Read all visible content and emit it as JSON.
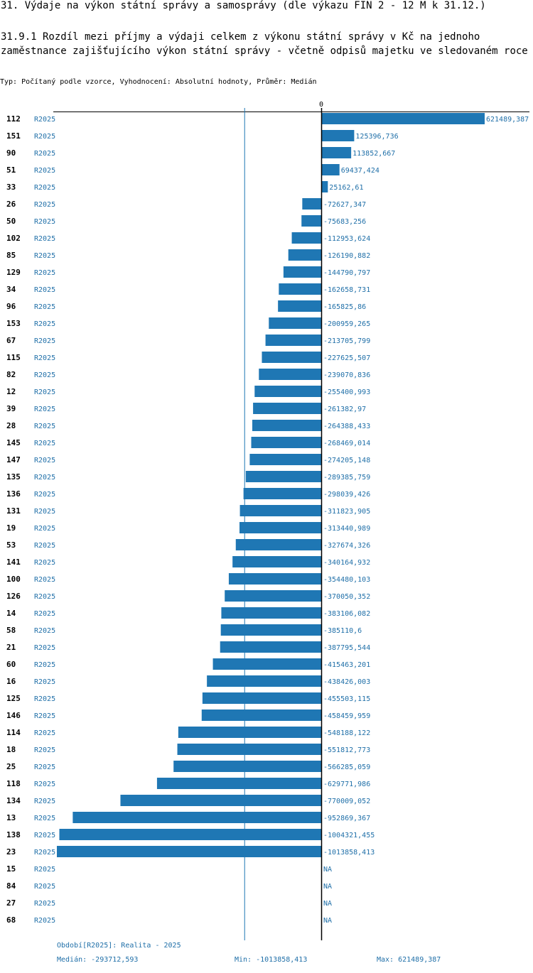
{
  "header": {
    "title": "31. Výdaje na výkon státní správy a samosprávy (dle výkazu FIN 2 - 12 M k 31.12.)",
    "subtitle": "31.9.1 Rozdíl mezi příjmy a výdaji celkem z výkonu státní správy v Kč na jednoho zaměstnance zajišťujícího výkon státní správy - včetně odpisů majetku ve sledovaném roce",
    "meta": "Typ: Počítaný podle vzorce, Vyhodnocení: Absolutní hodnoty, Průměr: Medián"
  },
  "colors": {
    "bar": "#1f77b4",
    "text_blue": "#1f6fa8",
    "axis": "#000000",
    "median_line": "#1f77b4"
  },
  "chart_data": {
    "type": "bar",
    "orientation": "horizontal",
    "zero_label": "0",
    "xlim": [
      -1013858.413,
      621489.387
    ],
    "median": -293712.593,
    "series_label": "R2025",
    "rows": [
      {
        "id": "112",
        "series": "R2025",
        "value": 621489.387,
        "label": "621489,387"
      },
      {
        "id": "151",
        "series": "R2025",
        "value": 125396.736,
        "label": "125396,736"
      },
      {
        "id": "90",
        "series": "R2025",
        "value": 113852.667,
        "label": "113852,667"
      },
      {
        "id": "51",
        "series": "R2025",
        "value": 69437.424,
        "label": "69437,424"
      },
      {
        "id": "33",
        "series": "R2025",
        "value": 25162.61,
        "label": "25162,61"
      },
      {
        "id": "26",
        "series": "R2025",
        "value": -72627.347,
        "label": "-72627,347"
      },
      {
        "id": "50",
        "series": "R2025",
        "value": -75683.256,
        "label": "-75683,256"
      },
      {
        "id": "102",
        "series": "R2025",
        "value": -112953.624,
        "label": "-112953,624"
      },
      {
        "id": "85",
        "series": "R2025",
        "value": -126190.882,
        "label": "-126190,882"
      },
      {
        "id": "129",
        "series": "R2025",
        "value": -144790.797,
        "label": "-144790,797"
      },
      {
        "id": "34",
        "series": "R2025",
        "value": -162658.731,
        "label": "-162658,731"
      },
      {
        "id": "96",
        "series": "R2025",
        "value": -165825.86,
        "label": "-165825,86"
      },
      {
        "id": "153",
        "series": "R2025",
        "value": -200959.265,
        "label": "-200959,265"
      },
      {
        "id": "67",
        "series": "R2025",
        "value": -213705.799,
        "label": "-213705,799"
      },
      {
        "id": "115",
        "series": "R2025",
        "value": -227625.507,
        "label": "-227625,507"
      },
      {
        "id": "82",
        "series": "R2025",
        "value": -239070.836,
        "label": "-239070,836"
      },
      {
        "id": "12",
        "series": "R2025",
        "value": -255400.993,
        "label": "-255400,993"
      },
      {
        "id": "39",
        "series": "R2025",
        "value": -261382.97,
        "label": "-261382,97"
      },
      {
        "id": "28",
        "series": "R2025",
        "value": -264388.433,
        "label": "-264388,433"
      },
      {
        "id": "145",
        "series": "R2025",
        "value": -268469.014,
        "label": "-268469,014"
      },
      {
        "id": "147",
        "series": "R2025",
        "value": -274205.148,
        "label": "-274205,148"
      },
      {
        "id": "135",
        "series": "R2025",
        "value": -289385.759,
        "label": "-289385,759"
      },
      {
        "id": "136",
        "series": "R2025",
        "value": -298039.426,
        "label": "-298039,426"
      },
      {
        "id": "131",
        "series": "R2025",
        "value": -311823.905,
        "label": "-311823,905"
      },
      {
        "id": "19",
        "series": "R2025",
        "value": -313440.989,
        "label": "-313440,989"
      },
      {
        "id": "53",
        "series": "R2025",
        "value": -327674.326,
        "label": "-327674,326"
      },
      {
        "id": "141",
        "series": "R2025",
        "value": -340164.932,
        "label": "-340164,932"
      },
      {
        "id": "100",
        "series": "R2025",
        "value": -354480.103,
        "label": "-354480,103"
      },
      {
        "id": "126",
        "series": "R2025",
        "value": -370050.352,
        "label": "-370050,352"
      },
      {
        "id": "14",
        "series": "R2025",
        "value": -383106.082,
        "label": "-383106,082"
      },
      {
        "id": "58",
        "series": "R2025",
        "value": -385110.6,
        "label": "-385110,6"
      },
      {
        "id": "21",
        "series": "R2025",
        "value": -387795.544,
        "label": "-387795,544"
      },
      {
        "id": "60",
        "series": "R2025",
        "value": -415463.201,
        "label": "-415463,201"
      },
      {
        "id": "16",
        "series": "R2025",
        "value": -438426.003,
        "label": "-438426,003"
      },
      {
        "id": "125",
        "series": "R2025",
        "value": -455503.115,
        "label": "-455503,115"
      },
      {
        "id": "146",
        "series": "R2025",
        "value": -458459.959,
        "label": "-458459,959"
      },
      {
        "id": "114",
        "series": "R2025",
        "value": -548188.122,
        "label": "-548188,122"
      },
      {
        "id": "18",
        "series": "R2025",
        "value": -551812.773,
        "label": "-551812,773"
      },
      {
        "id": "25",
        "series": "R2025",
        "value": -566285.059,
        "label": "-566285,059"
      },
      {
        "id": "118",
        "series": "R2025",
        "value": -629771.986,
        "label": "-629771,986"
      },
      {
        "id": "134",
        "series": "R2025",
        "value": -770009.052,
        "label": "-770009,052"
      },
      {
        "id": "13",
        "series": "R2025",
        "value": -952869.367,
        "label": "-952869,367"
      },
      {
        "id": "138",
        "series": "R2025",
        "value": -1004321.455,
        "label": "-1004321,455"
      },
      {
        "id": "23",
        "series": "R2025",
        "value": -1013858.413,
        "label": "-1013858,413"
      },
      {
        "id": "15",
        "series": "R2025",
        "value": null,
        "label": "NA"
      },
      {
        "id": "84",
        "series": "R2025",
        "value": null,
        "label": "NA"
      },
      {
        "id": "27",
        "series": "R2025",
        "value": null,
        "label": "NA"
      },
      {
        "id": "68",
        "series": "R2025",
        "value": null,
        "label": "NA"
      }
    ]
  },
  "footer": {
    "period": "Období[R2025]: Realita - 2025",
    "median": "Medián: -293712,593",
    "min": "Min: -1013858,413",
    "max": "Max: 621489,387"
  }
}
